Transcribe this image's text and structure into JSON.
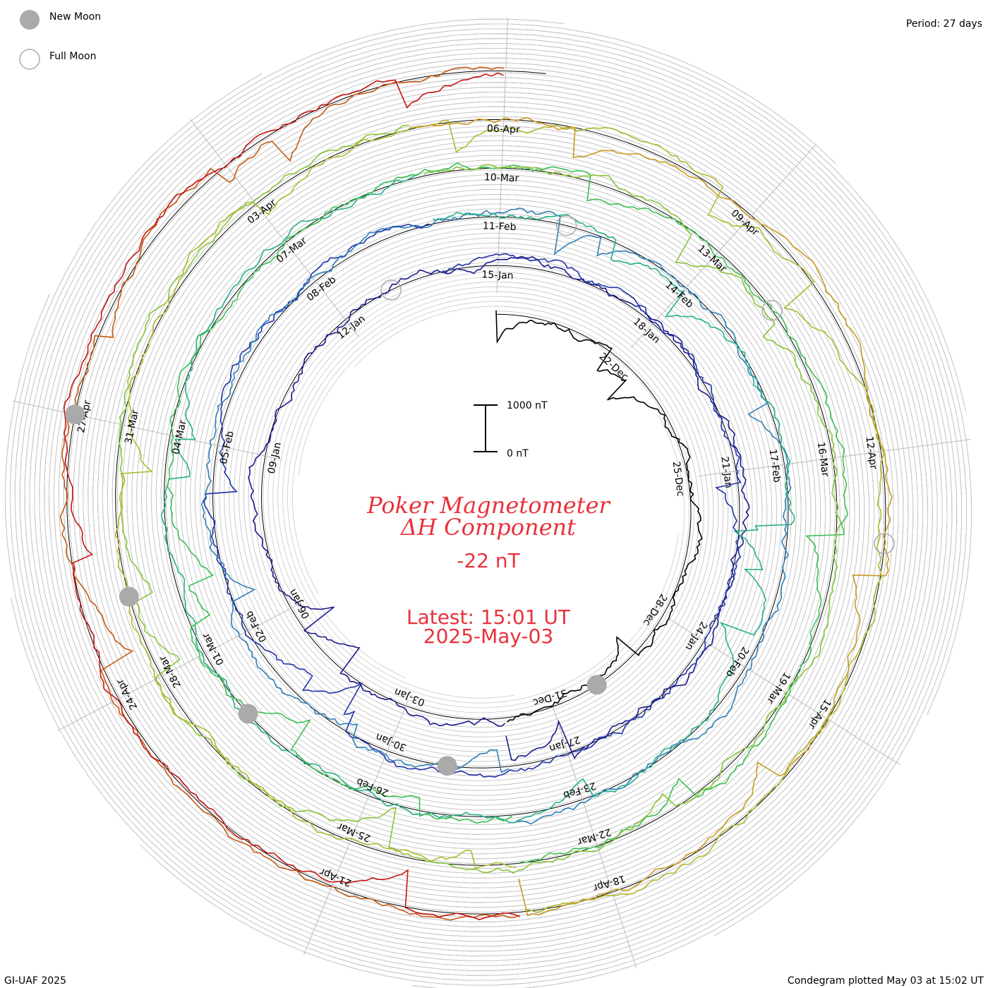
{
  "legend": {
    "new_moon": "New Moon",
    "full_moon": "Full Moon"
  },
  "period_label": "Period: 27 days",
  "footer_left": "GI-UAF 2025",
  "footer_right": "Condegram plotted May 03 at 15:02 UT",
  "scale_bar": {
    "top_label": "1000 nT",
    "bottom_label": "0 nT"
  },
  "center": {
    "title_line1": "Poker Magnetometer",
    "title_line2": "ΔH Component",
    "value": "-22 nT",
    "latest_line1": "Latest: 15:01 UT",
    "latest_line2": "2025-May-03"
  },
  "colors": {
    "title": "#e8323c",
    "new_moon": "#aaaaaa",
    "grid": "#bbbbbb"
  },
  "chart_data": {
    "type": "line",
    "title": "Poker Magnetometer ΔH Component",
    "period_days": 27,
    "units": "nT",
    "scale_nT": [
      0,
      1000
    ],
    "series": [
      {
        "color": "#000000",
        "start": "2024-12-19",
        "end": "2025-01-01"
      },
      {
        "color": "#1a1a8c",
        "start": "2025-01-01",
        "end": "2025-01-28"
      },
      {
        "color": "#2233aa",
        "start": "2025-01-14",
        "end": "2025-02-10"
      },
      {
        "color": "#2f7fb8",
        "start": "2025-01-28",
        "end": "2025-02-24"
      },
      {
        "color": "#26b08a",
        "start": "2025-02-10",
        "end": "2025-03-09"
      },
      {
        "color": "#3bbf55",
        "start": "2025-02-24",
        "end": "2025-03-23"
      },
      {
        "color": "#88c43a",
        "start": "2025-03-09",
        "end": "2025-04-05"
      },
      {
        "color": "#b0b830",
        "start": "2025-03-23",
        "end": "2025-04-19"
      },
      {
        "color": "#c79a1e",
        "start": "2025-04-05",
        "end": "2025-04-19"
      },
      {
        "color": "#c45a14",
        "start": "2025-04-19",
        "end": "2025-05-03"
      },
      {
        "color": "#c41414",
        "start": "2025-04-19",
        "end": "2025-05-03"
      }
    ],
    "date_labels": [
      "22-Dec",
      "25-Dec",
      "28-Dec",
      "31-Dec",
      "03-Jan",
      "06-Jan",
      "09-Jan",
      "12-Jan",
      "15-Jan",
      "18-Jan",
      "21-Jan",
      "24-Jan",
      "27-Jan",
      "30-Jan",
      "02-Feb",
      "05-Feb",
      "08-Feb",
      "11-Feb",
      "14-Feb",
      "17-Feb",
      "20-Feb",
      "23-Feb",
      "26-Feb",
      "01-Mar",
      "04-Mar",
      "07-Mar",
      "10-Mar",
      "13-Mar",
      "16-Mar",
      "19-Mar",
      "22-Mar",
      "25-Mar",
      "28-Mar",
      "31-Mar",
      "03-Apr",
      "06-Apr",
      "09-Apr",
      "12-Apr",
      "15-Apr",
      "18-Apr",
      "21-Apr",
      "24-Apr",
      "27-Apr"
    ]
  }
}
